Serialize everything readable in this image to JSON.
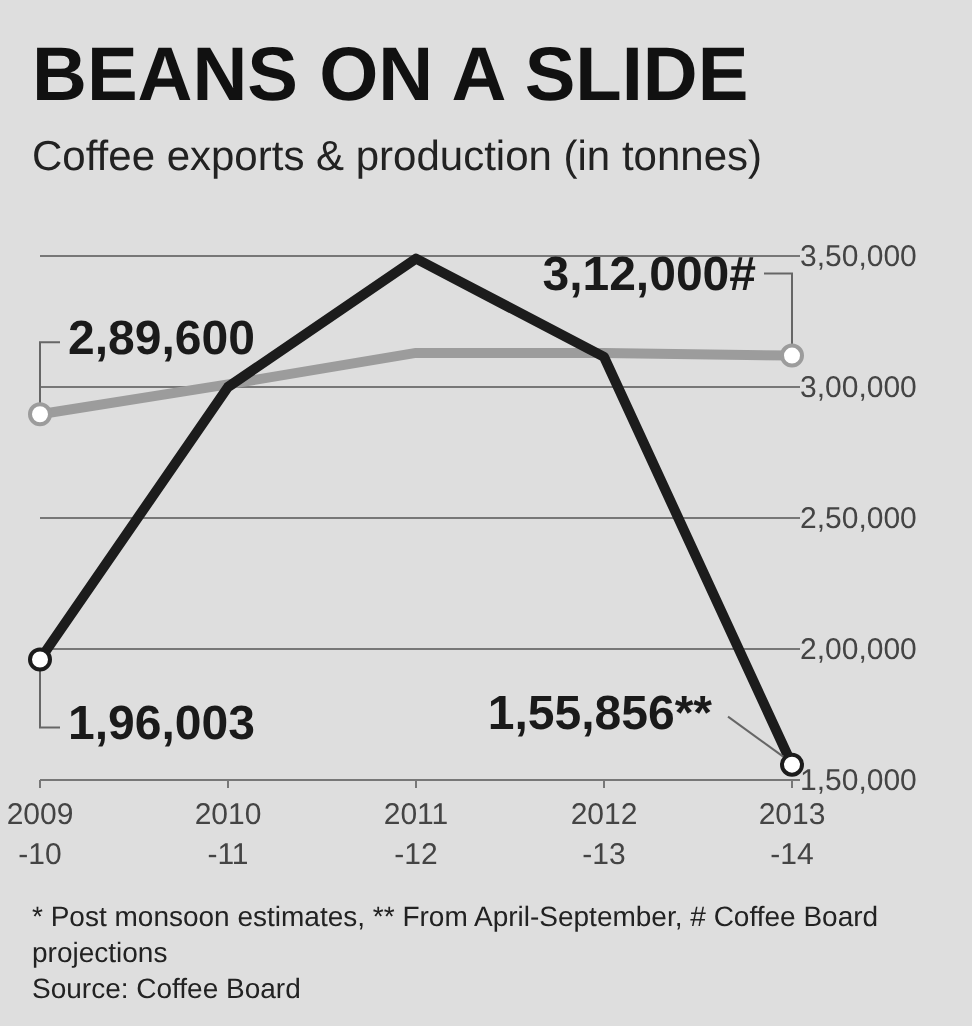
{
  "chart_data": {
    "type": "line",
    "title": "BEANS ON A SLIDE",
    "subtitle": "Coffee exports & production (in tonnes)",
    "categories": [
      "2009-10",
      "2010-11",
      "2011-12",
      "2012-13",
      "2013-14"
    ],
    "series": [
      {
        "color": "#1c1c1c",
        "values": [
          196003,
          300000,
          349000,
          311500,
          155856
        ],
        "value_labels": [
          "1,96,003",
          null,
          null,
          null,
          "1,55,856**"
        ]
      },
      {
        "color": "#9c9c9c",
        "values": [
          289600,
          301000,
          313000,
          313000,
          312000
        ],
        "value_labels": [
          "2,89,600",
          null,
          null,
          null,
          "3,12,000#"
        ]
      }
    ],
    "ylim": [
      150000,
      350000
    ],
    "yticks": [
      {
        "value": 150000,
        "label": "1,50,000"
      },
      {
        "value": 200000,
        "label": "2,00,000"
      },
      {
        "value": 250000,
        "label": "2,50,000"
      },
      {
        "value": 300000,
        "label": "3,00,000"
      },
      {
        "value": 350000,
        "label": "3,50,000"
      }
    ],
    "grid": "y",
    "annotations": [
      "* Post monsoon estimates, ** From April-September, # Coffee Board projections",
      "Source: Coffee Board"
    ]
  }
}
